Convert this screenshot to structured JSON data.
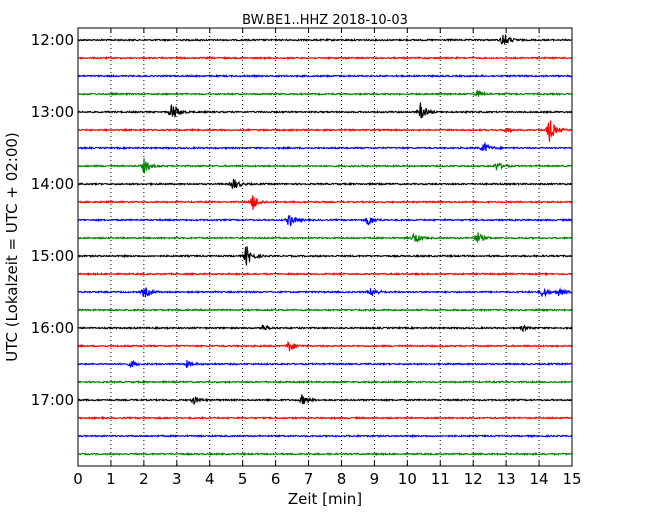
{
  "chart_data": {
    "type": "line",
    "title": "BW.BE1..HHZ 2018-10-03",
    "xlabel": "Zeit  [min]",
    "ylabel": "UTC (Lokalzeit = UTC + 02:00)",
    "xlim": [
      0,
      15
    ],
    "x_ticks": [
      0,
      1,
      2,
      3,
      4,
      5,
      6,
      7,
      8,
      9,
      10,
      11,
      12,
      13,
      14,
      15
    ],
    "x_tick_labels": [
      "0",
      "1",
      "2",
      "3",
      "4",
      "5",
      "6",
      "7",
      "8",
      "9",
      "10",
      "11",
      "12",
      "13",
      "14",
      "15"
    ],
    "y_tick_labels": [
      "12:00",
      "13:00",
      "14:00",
      "15:00",
      "16:00",
      "17:00"
    ],
    "y_tick_rows": [
      0,
      4,
      8,
      12,
      16,
      20
    ],
    "grid": "vertical-dotted",
    "colors": [
      "#000000",
      "#ff0000",
      "#0000ff",
      "#008000"
    ],
    "series": [
      {
        "start": "12:00",
        "events": [
          {
            "t": 12.9,
            "amp": 1.0
          }
        ]
      },
      {
        "start": "12:15",
        "events": []
      },
      {
        "start": "12:30",
        "events": []
      },
      {
        "start": "12:45",
        "events": [
          {
            "t": 12.1,
            "amp": 0.4
          }
        ]
      },
      {
        "start": "13:00",
        "events": [
          {
            "t": 2.85,
            "amp": 1.3
          },
          {
            "t": 10.4,
            "amp": 1.0
          }
        ]
      },
      {
        "start": "13:15",
        "events": [
          {
            "t": 14.3,
            "amp": 1.5
          },
          {
            "t": 13.0,
            "amp": 0.3
          }
        ]
      },
      {
        "start": "13:30",
        "events": [
          {
            "t": 12.3,
            "amp": 0.7
          }
        ]
      },
      {
        "start": "13:45",
        "events": [
          {
            "t": 2.0,
            "amp": 0.9
          },
          {
            "t": 12.7,
            "amp": 0.5
          }
        ]
      },
      {
        "start": "14:00",
        "events": [
          {
            "t": 4.7,
            "amp": 0.8
          }
        ]
      },
      {
        "start": "14:15",
        "events": [
          {
            "t": 5.3,
            "amp": 1.0
          }
        ]
      },
      {
        "start": "14:30",
        "events": [
          {
            "t": 6.4,
            "amp": 0.9
          },
          {
            "t": 8.8,
            "amp": 0.7
          }
        ]
      },
      {
        "start": "14:45",
        "events": [
          {
            "t": 10.2,
            "amp": 0.7
          },
          {
            "t": 12.1,
            "amp": 0.8
          }
        ]
      },
      {
        "start": "15:00",
        "events": [
          {
            "t": 5.1,
            "amp": 1.3
          }
        ]
      },
      {
        "start": "15:15",
        "events": []
      },
      {
        "start": "15:30",
        "events": [
          {
            "t": 2.0,
            "amp": 0.7
          },
          {
            "t": 8.9,
            "amp": 0.6
          },
          {
            "t": 14.1,
            "amp": 0.7
          },
          {
            "t": 14.6,
            "amp": 0.5
          }
        ]
      },
      {
        "start": "15:45",
        "events": []
      },
      {
        "start": "16:00",
        "events": [
          {
            "t": 5.6,
            "amp": 0.4
          },
          {
            "t": 13.5,
            "amp": 0.3
          }
        ]
      },
      {
        "start": "16:15",
        "events": [
          {
            "t": 6.4,
            "amp": 0.7
          }
        ]
      },
      {
        "start": "16:30",
        "events": [
          {
            "t": 1.6,
            "amp": 0.4
          },
          {
            "t": 3.3,
            "amp": 0.4
          }
        ]
      },
      {
        "start": "16:45",
        "events": []
      },
      {
        "start": "17:00",
        "events": [
          {
            "t": 3.5,
            "amp": 0.5
          },
          {
            "t": 6.8,
            "amp": 0.6
          }
        ]
      },
      {
        "start": "17:15",
        "events": []
      },
      {
        "start": "17:30",
        "events": []
      },
      {
        "start": "17:45",
        "events": []
      }
    ]
  }
}
